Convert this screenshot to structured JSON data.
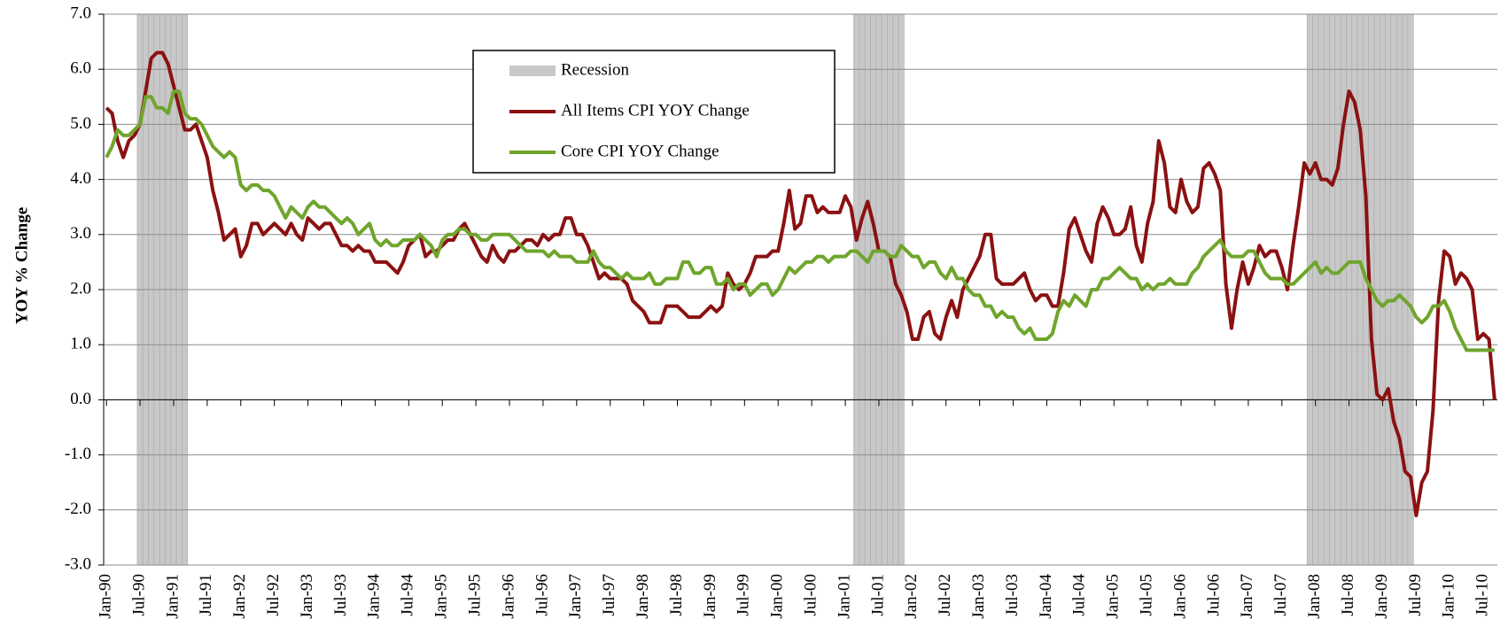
{
  "chart_data": {
    "type": "line",
    "ylabel": "YOY % Change",
    "legend": "top-center",
    "grid": true,
    "ylim": [
      -3,
      7
    ],
    "yticks": [
      {
        "value": -3,
        "label": "-3.0"
      },
      {
        "value": -2,
        "label": "-2.0"
      },
      {
        "value": -1,
        "label": "-1.0"
      },
      {
        "value": 0,
        "label": "0.0"
      },
      {
        "value": 1,
        "label": "1.0"
      },
      {
        "value": 2,
        "label": "2.0"
      },
      {
        "value": 3,
        "label": "3.0"
      },
      {
        "value": 4,
        "label": "4.0"
      },
      {
        "value": 5,
        "label": "5.0"
      },
      {
        "value": 6,
        "label": "6.0"
      },
      {
        "value": 7,
        "label": "7.0"
      }
    ],
    "categories": [
      "Jan-90",
      null,
      null,
      null,
      null,
      null,
      "Jul-90",
      null,
      null,
      null,
      null,
      null,
      "Jan-91",
      null,
      null,
      null,
      null,
      null,
      "Jul-91",
      null,
      null,
      null,
      null,
      null,
      "Jan-92",
      null,
      null,
      null,
      null,
      null,
      "Jul-92",
      null,
      null,
      null,
      null,
      null,
      "Jan-93",
      null,
      null,
      null,
      null,
      null,
      "Jul-93",
      null,
      null,
      null,
      null,
      null,
      "Jan-94",
      null,
      null,
      null,
      null,
      null,
      "Jul-94",
      null,
      null,
      null,
      null,
      null,
      "Jan-95",
      null,
      null,
      null,
      null,
      null,
      "Jul-95",
      null,
      null,
      null,
      null,
      null,
      "Jan-96",
      null,
      null,
      null,
      null,
      null,
      "Jul-96",
      null,
      null,
      null,
      null,
      null,
      "Jan-97",
      null,
      null,
      null,
      null,
      null,
      "Jul-97",
      null,
      null,
      null,
      null,
      null,
      "Jan-98",
      null,
      null,
      null,
      null,
      null,
      "Jul-98",
      null,
      null,
      null,
      null,
      null,
      "Jan-99",
      null,
      null,
      null,
      null,
      null,
      "Jul-99",
      null,
      null,
      null,
      null,
      null,
      "Jan-00",
      null,
      null,
      null,
      null,
      null,
      "Jul-00",
      null,
      null,
      null,
      null,
      null,
      "Jan-01",
      null,
      null,
      null,
      null,
      null,
      "Jul-01",
      null,
      null,
      null,
      null,
      null,
      "Jan-02",
      null,
      null,
      null,
      null,
      null,
      "Jul-02",
      null,
      null,
      null,
      null,
      null,
      "Jan-03",
      null,
      null,
      null,
      null,
      null,
      "Jul-03",
      null,
      null,
      null,
      null,
      null,
      "Jan-04",
      null,
      null,
      null,
      null,
      null,
      "Jul-04",
      null,
      null,
      null,
      null,
      null,
      "Jan-05",
      null,
      null,
      null,
      null,
      null,
      "Jul-05",
      null,
      null,
      null,
      null,
      null,
      "Jan-06",
      null,
      null,
      null,
      null,
      null,
      "Jul-06",
      null,
      null,
      null,
      null,
      null,
      "Jan-07",
      null,
      null,
      null,
      null,
      null,
      "Jul-07",
      null,
      null,
      null,
      null,
      null,
      "Jan-08",
      null,
      null,
      null,
      null,
      null,
      "Jul-08",
      null,
      null,
      null,
      null,
      null,
      "Jan-09",
      null,
      null,
      null,
      null,
      null,
      "Jul-09",
      null,
      null,
      null,
      null,
      null,
      "Jan-10",
      null,
      null,
      null,
      null,
      null,
      "Jul-10",
      null,
      null
    ],
    "recession": {
      "name": "Recession",
      "color": "#c8c8c8",
      "values": [
        0,
        0,
        0,
        0,
        0,
        0,
        1,
        1,
        1,
        1,
        1,
        1,
        1,
        1,
        1,
        0,
        0,
        0,
        0,
        0,
        0,
        0,
        0,
        0,
        0,
        0,
        0,
        0,
        0,
        0,
        0,
        0,
        0,
        0,
        0,
        0,
        0,
        0,
        0,
        0,
        0,
        0,
        0,
        0,
        0,
        0,
        0,
        0,
        0,
        0,
        0,
        0,
        0,
        0,
        0,
        0,
        0,
        0,
        0,
        0,
        0,
        0,
        0,
        0,
        0,
        0,
        0,
        0,
        0,
        0,
        0,
        0,
        0,
        0,
        0,
        0,
        0,
        0,
        0,
        0,
        0,
        0,
        0,
        0,
        0,
        0,
        0,
        0,
        0,
        0,
        0,
        0,
        0,
        0,
        0,
        0,
        0,
        0,
        0,
        0,
        0,
        0,
        0,
        0,
        0,
        0,
        0,
        0,
        0,
        0,
        0,
        0,
        0,
        0,
        0,
        0,
        0,
        0,
        0,
        0,
        0,
        0,
        0,
        0,
        0,
        0,
        0,
        0,
        0,
        0,
        0,
        0,
        0,
        0,
        1,
        1,
        1,
        1,
        1,
        1,
        1,
        1,
        1,
        0,
        0,
        0,
        0,
        0,
        0,
        0,
        0,
        0,
        0,
        0,
        0,
        0,
        0,
        0,
        0,
        0,
        0,
        0,
        0,
        0,
        0,
        0,
        0,
        0,
        0,
        0,
        0,
        0,
        0,
        0,
        0,
        0,
        0,
        0,
        0,
        0,
        0,
        0,
        0,
        0,
        0,
        0,
        0,
        0,
        0,
        0,
        0,
        0,
        0,
        0,
        0,
        0,
        0,
        0,
        0,
        0,
        0,
        0,
        0,
        0,
        0,
        0,
        0,
        0,
        0,
        0,
        0,
        0,
        0,
        0,
        0,
        1,
        1,
        1,
        1,
        1,
        1,
        1,
        1,
        1,
        1,
        1,
        1,
        1,
        1,
        1,
        1,
        1,
        1,
        1,
        0,
        0,
        0,
        0,
        0,
        0,
        0,
        0,
        0,
        0,
        0,
        0,
        0,
        0,
        0
      ]
    },
    "series": [
      {
        "name": "All Items CPI YOY Change",
        "color": "#8b1111",
        "values": [
          5.3,
          5.2,
          4.7,
          4.4,
          4.7,
          4.8,
          5.0,
          5.6,
          6.2,
          6.3,
          6.3,
          6.1,
          5.7,
          5.3,
          4.9,
          4.9,
          5.0,
          4.7,
          4.4,
          3.8,
          3.4,
          2.9,
          3.0,
          3.1,
          2.6,
          2.8,
          3.2,
          3.2,
          3.0,
          3.1,
          3.2,
          3.1,
          3.0,
          3.2,
          3.0,
          2.9,
          3.3,
          3.2,
          3.1,
          3.2,
          3.2,
          3.0,
          2.8,
          2.8,
          2.7,
          2.8,
          2.7,
          2.7,
          2.5,
          2.5,
          2.5,
          2.4,
          2.3,
          2.5,
          2.8,
          2.9,
          3.0,
          2.6,
          2.7,
          2.7,
          2.8,
          2.9,
          2.9,
          3.1,
          3.2,
          3.0,
          2.8,
          2.6,
          2.5,
          2.8,
          2.6,
          2.5,
          2.7,
          2.7,
          2.8,
          2.9,
          2.9,
          2.8,
          3.0,
          2.9,
          3.0,
          3.0,
          3.3,
          3.3,
          3.0,
          3.0,
          2.8,
          2.5,
          2.2,
          2.3,
          2.2,
          2.2,
          2.2,
          2.1,
          1.8,
          1.7,
          1.6,
          1.4,
          1.4,
          1.4,
          1.7,
          1.7,
          1.7,
          1.6,
          1.5,
          1.5,
          1.5,
          1.6,
          1.7,
          1.6,
          1.7,
          2.3,
          2.1,
          2.0,
          2.1,
          2.3,
          2.6,
          2.6,
          2.6,
          2.7,
          2.7,
          3.2,
          3.8,
          3.1,
          3.2,
          3.7,
          3.7,
          3.4,
          3.5,
          3.4,
          3.4,
          3.4,
          3.7,
          3.5,
          2.9,
          3.3,
          3.6,
          3.2,
          2.7,
          2.7,
          2.6,
          2.1,
          1.9,
          1.6,
          1.1,
          1.1,
          1.5,
          1.6,
          1.2,
          1.1,
          1.5,
          1.8,
          1.5,
          2.0,
          2.2,
          2.4,
          2.6,
          3.0,
          3.0,
          2.2,
          2.1,
          2.1,
          2.1,
          2.2,
          2.3,
          2.0,
          1.8,
          1.9,
          1.9,
          1.7,
          1.7,
          2.3,
          3.1,
          3.3,
          3.0,
          2.7,
          2.5,
          3.2,
          3.5,
          3.3,
          3.0,
          3.0,
          3.1,
          3.5,
          2.8,
          2.5,
          3.2,
          3.6,
          4.7,
          4.3,
          3.5,
          3.4,
          4.0,
          3.6,
          3.4,
          3.5,
          4.2,
          4.3,
          4.1,
          3.8,
          2.1,
          1.3,
          2.0,
          2.5,
          2.1,
          2.4,
          2.8,
          2.6,
          2.7,
          2.7,
          2.4,
          2.0,
          2.8,
          3.5,
          4.3,
          4.1,
          4.3,
          4.0,
          4.0,
          3.9,
          4.2,
          5.0,
          5.6,
          5.4,
          4.9,
          3.7,
          1.1,
          0.1,
          0.0,
          0.2,
          -0.4,
          -0.7,
          -1.3,
          -1.4,
          -2.1,
          -1.5,
          -1.3,
          -0.2,
          1.8,
          2.7,
          2.6,
          2.1,
          2.3,
          2.2,
          2.0,
          1.1,
          1.2,
          1.1,
          0.0
        ]
      },
      {
        "name": "Core CPI YOY Change",
        "color": "#6fa52c",
        "values": [
          4.4,
          4.6,
          4.9,
          4.8,
          4.8,
          4.9,
          5.0,
          5.5,
          5.5,
          5.3,
          5.3,
          5.2,
          5.6,
          5.6,
          5.2,
          5.1,
          5.1,
          5.0,
          4.8,
          4.6,
          4.5,
          4.4,
          4.5,
          4.4,
          3.9,
          3.8,
          3.9,
          3.9,
          3.8,
          3.8,
          3.7,
          3.5,
          3.3,
          3.5,
          3.4,
          3.3,
          3.5,
          3.6,
          3.5,
          3.5,
          3.4,
          3.3,
          3.2,
          3.3,
          3.2,
          3.0,
          3.1,
          3.2,
          2.9,
          2.8,
          2.9,
          2.8,
          2.8,
          2.9,
          2.9,
          2.9,
          3.0,
          2.9,
          2.8,
          2.6,
          2.9,
          3.0,
          3.0,
          3.1,
          3.1,
          3.0,
          3.0,
          2.9,
          2.9,
          3.0,
          3.0,
          3.0,
          3.0,
          2.9,
          2.8,
          2.7,
          2.7,
          2.7,
          2.7,
          2.6,
          2.7,
          2.6,
          2.6,
          2.6,
          2.5,
          2.5,
          2.5,
          2.7,
          2.5,
          2.4,
          2.4,
          2.3,
          2.2,
          2.3,
          2.2,
          2.2,
          2.2,
          2.3,
          2.1,
          2.1,
          2.2,
          2.2,
          2.2,
          2.5,
          2.5,
          2.3,
          2.3,
          2.4,
          2.4,
          2.1,
          2.1,
          2.2,
          2.0,
          2.1,
          2.1,
          1.9,
          2.0,
          2.1,
          2.1,
          1.9,
          2.0,
          2.2,
          2.4,
          2.3,
          2.4,
          2.5,
          2.5,
          2.6,
          2.6,
          2.5,
          2.6,
          2.6,
          2.6,
          2.7,
          2.7,
          2.6,
          2.5,
          2.7,
          2.7,
          2.7,
          2.6,
          2.6,
          2.8,
          2.7,
          2.6,
          2.6,
          2.4,
          2.5,
          2.5,
          2.3,
          2.2,
          2.4,
          2.2,
          2.2,
          2.0,
          1.9,
          1.9,
          1.7,
          1.7,
          1.5,
          1.6,
          1.5,
          1.5,
          1.3,
          1.2,
          1.3,
          1.1,
          1.1,
          1.1,
          1.2,
          1.6,
          1.8,
          1.7,
          1.9,
          1.8,
          1.7,
          2.0,
          2.0,
          2.2,
          2.2,
          2.3,
          2.4,
          2.3,
          2.2,
          2.2,
          2.0,
          2.1,
          2.0,
          2.1,
          2.1,
          2.2,
          2.1,
          2.1,
          2.1,
          2.3,
          2.4,
          2.6,
          2.7,
          2.8,
          2.9,
          2.7,
          2.6,
          2.6,
          2.6,
          2.7,
          2.7,
          2.5,
          2.3,
          2.2,
          2.2,
          2.2,
          2.1,
          2.1,
          2.2,
          2.3,
          2.4,
          2.5,
          2.3,
          2.4,
          2.3,
          2.3,
          2.4,
          2.5,
          2.5,
          2.5,
          2.2,
          2.0,
          1.8,
          1.7,
          1.8,
          1.8,
          1.9,
          1.8,
          1.7,
          1.5,
          1.4,
          1.5,
          1.7,
          1.7,
          1.8,
          1.6,
          1.3,
          1.1,
          0.9,
          0.9,
          0.9,
          0.9,
          0.9,
          0.9
        ]
      }
    ]
  }
}
